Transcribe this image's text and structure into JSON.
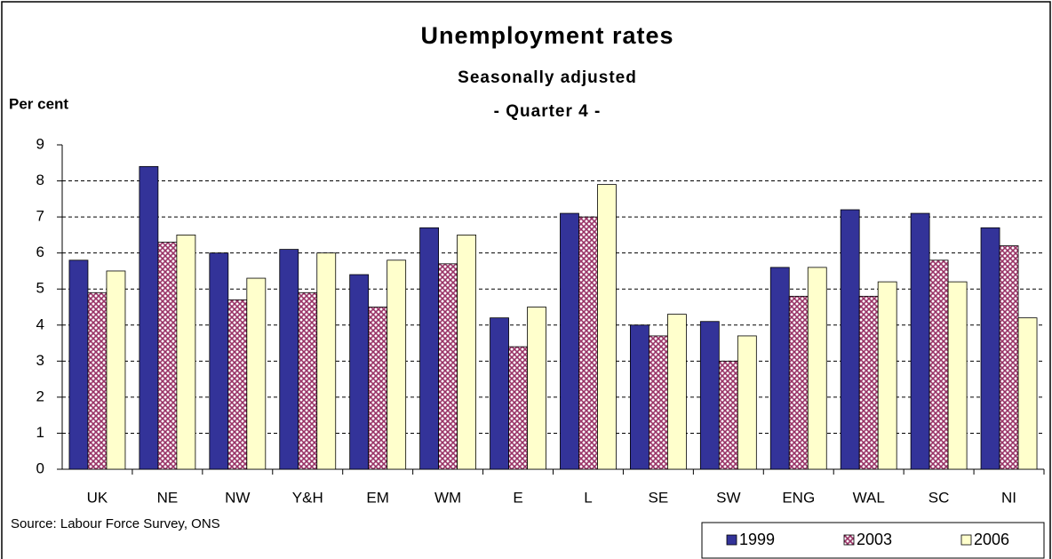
{
  "chart_data": {
    "type": "bar",
    "title": "Unemployment rates",
    "subtitle": "Seasonally adjusted",
    "subtitle2": "- Quarter 4 -",
    "y_label": "Per cent",
    "source": "Source: Labour Force Survey, ONS",
    "categories": [
      "UK",
      "NE",
      "NW",
      "Y&H",
      "EM",
      "WM",
      "E",
      "L",
      "SE",
      "SW",
      "ENG",
      "WAL",
      "SC",
      "NI"
    ],
    "series": [
      {
        "name": "1999",
        "color": "#333399",
        "values": [
          5.8,
          8.4,
          6.0,
          6.1,
          5.4,
          6.7,
          4.2,
          7.1,
          4.0,
          4.1,
          5.6,
          7.2,
          7.1,
          6.7
        ]
      },
      {
        "name": "2003",
        "color": "#993366",
        "values": [
          4.9,
          6.3,
          4.7,
          4.9,
          4.5,
          5.7,
          3.4,
          7.0,
          3.7,
          3.0,
          4.8,
          4.8,
          5.8,
          6.2
        ]
      },
      {
        "name": "2006",
        "color": "#ffffcc",
        "values": [
          5.5,
          6.5,
          5.3,
          6.0,
          5.8,
          6.5,
          4.5,
          7.9,
          4.3,
          3.7,
          5.6,
          5.2,
          5.2,
          4.2
        ]
      }
    ],
    "ylim": [
      0,
      9
    ],
    "yticks": [
      0,
      1,
      2,
      3,
      4,
      5,
      6,
      7,
      8,
      9
    ],
    "grid": true,
    "legend": "bottom-right"
  }
}
